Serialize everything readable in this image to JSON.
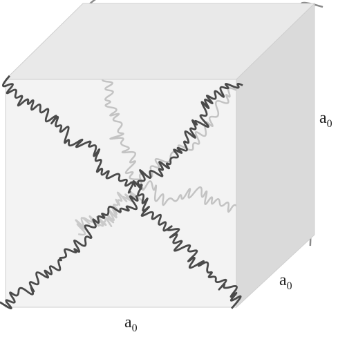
{
  "labels": [
    {
      "base": "a",
      "sub": "0"
    },
    {
      "base": "a",
      "sub": "0"
    },
    {
      "base": "a",
      "sub": "0"
    }
  ]
}
